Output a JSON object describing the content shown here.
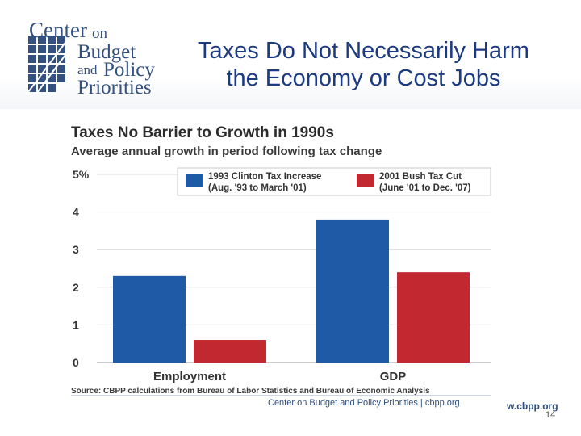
{
  "logo": {
    "line1": "Center",
    "line1b": "on",
    "line2": "Budget",
    "line3a": "and",
    "line3b": "Policy",
    "line4": "Priorities"
  },
  "slide": {
    "title_line1": "Taxes Do Not Necessarily Harm",
    "title_line2": "the Economy or Cost Jobs",
    "url_fragment": "w.cbpp.org",
    "page_number": "14"
  },
  "colors": {
    "blue": "#1f5aa6",
    "red": "#c1282f",
    "grid": "#d9d9d9"
  },
  "chart_data": {
    "type": "bar",
    "title": "Taxes No Barrier to Growth in 1990s",
    "subtitle": "Average annual growth in period following tax change",
    "categories": [
      "Employment",
      "GDP"
    ],
    "series": [
      {
        "name": "1993 Clinton Tax Increase",
        "detail": "(Aug. '93 to March '01)",
        "values": [
          2.3,
          3.8
        ]
      },
      {
        "name": "2001 Bush Tax Cut",
        "detail": "(June '01 to Dec. '07)",
        "values": [
          0.6,
          2.4
        ]
      }
    ],
    "y_ticks": [
      "0",
      "1",
      "2",
      "3",
      "4",
      "5%"
    ],
    "ylim": [
      0,
      5
    ],
    "grid": true,
    "legend_position": "top",
    "source": "Source: CBPP calculations from Bureau of Labor Statistics and Bureau of Economic Analysis",
    "credit": "Center on Budget and Policy Priorities | cbpp.org"
  }
}
